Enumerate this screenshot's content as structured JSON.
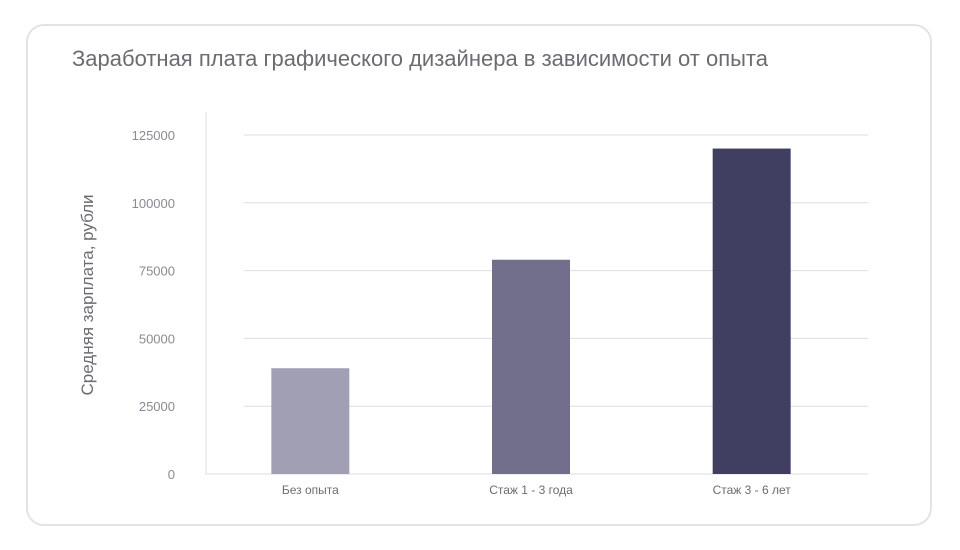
{
  "chart_data": {
    "type": "bar",
    "title": "Заработная плата графического дизайнера в зависимости от опыта",
    "xlabel": "",
    "ylabel": "Средняя зарплата, рубли",
    "categories": [
      "Без опыта",
      "Стаж 1 - 3 года",
      "Стаж 3 - 6 лет"
    ],
    "values": [
      39000,
      79000,
      120000
    ],
    "ylim": [
      0,
      125000
    ],
    "yticks": [
      "0",
      "25000",
      "50000",
      "75000",
      "100000",
      "125000"
    ],
    "ytick_values": [
      0,
      25000,
      50000,
      75000,
      100000,
      125000
    ],
    "bar_colors": [
      "#a19fb4",
      "#716f8b",
      "#403e61"
    ],
    "grid": true
  }
}
